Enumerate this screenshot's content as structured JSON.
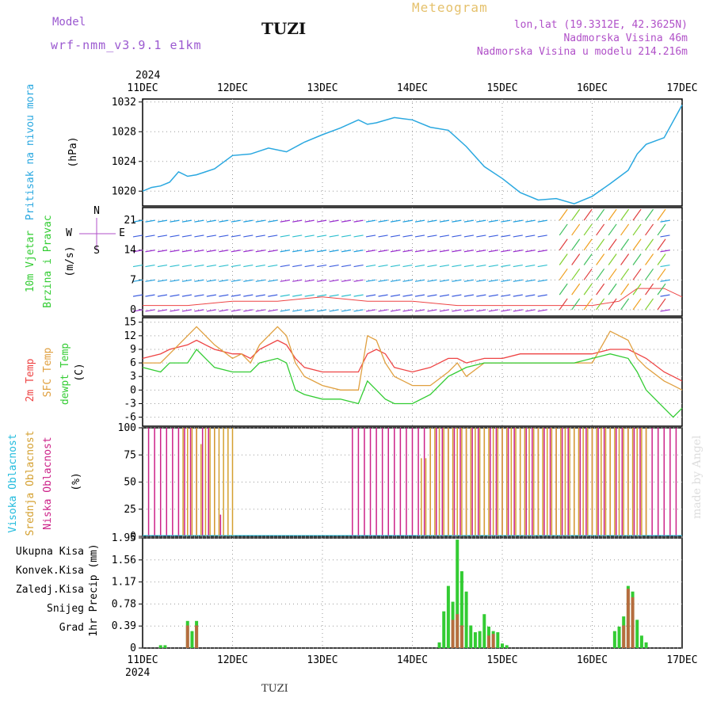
{
  "header": {
    "model_label": "Model",
    "model_name": "wrf-nmm_v3.9.1  e1km",
    "station": "TUZI",
    "title": "Meteogram",
    "lonlat": "lon,lat (19.3312E, 42.3625N)",
    "altitude": "Nadmorska Visina 46m",
    "model_altitude": "Nadmorska Visina u modelu 214.216m"
  },
  "footer": {
    "station": "TUZI",
    "credit": "made by Angel"
  },
  "time_axis": {
    "year": "2024",
    "ticks": [
      "11DEC",
      "12DEC",
      "13DEC",
      "14DEC",
      "15DEC",
      "16DEC",
      "17DEC"
    ]
  },
  "colors": {
    "pressure": "#2aa8e0",
    "temp": "#ee4444",
    "sfc": "#e0a040",
    "dew": "#33cc33",
    "cloud_high": "#22bbdd",
    "cloud_mid": "#d4a030",
    "cloud_low": "#cc2288",
    "precip_total": "#33cc33",
    "precip_conv": "#ee4444",
    "precip_frz": "#ee8833",
    "precip_snow": "#4444ee",
    "precip_hail": "#22cccc",
    "wind_label": "#33cc33",
    "wind_dir": "#b050c8"
  },
  "panels": {
    "pressure": {
      "label": "Pritisak na nivou mora",
      "unit": "(hPa)"
    },
    "wind": {
      "label1": "10m Vjetar",
      "label2": "Brzina i Pravac",
      "unit": "(m/s)",
      "compass_n": "N",
      "compass_s": "S",
      "compass_w": "W",
      "compass_e": "E"
    },
    "temp": {
      "label1": "2m Temp",
      "label2": "SFC Temp",
      "label3": "dewpt Temp",
      "unit": "(C)"
    },
    "cloud": {
      "label1": "Visoka Oblacnost",
      "label2": "Srednja Oblacnost",
      "label3": "Niska Oblacnost",
      "unit": "(%)"
    },
    "precip": {
      "unit": "1hr Precip (mm)",
      "legend": [
        "Ukupna Kisa",
        "Konvek.Kisa",
        "Zaledj.Kisa",
        "Snijeg",
        "Grad"
      ]
    }
  },
  "chart_data": [
    {
      "type": "line",
      "ylim": [
        1018,
        1032.4
      ],
      "yticks": [
        1020,
        1024,
        1028,
        1032
      ],
      "x": [
        0,
        0.1,
        0.2,
        0.3,
        0.4,
        0.5,
        0.6,
        0.7,
        0.8,
        1.0,
        1.2,
        1.4,
        1.6,
        1.8,
        2.0,
        2.2,
        2.4,
        2.5,
        2.6,
        2.8,
        3.0,
        3.2,
        3.4,
        3.6,
        3.8,
        4.0,
        4.2,
        4.4,
        4.6,
        4.8,
        5.0,
        5.2,
        5.4,
        5.5,
        5.6,
        5.8,
        6.0
      ],
      "series": [
        {
          "values": [
            1020.0,
            1020.5,
            1020.7,
            1021.2,
            1022.6,
            1022.0,
            1022.2,
            1022.6,
            1023.0,
            1024.8,
            1025.0,
            1025.8,
            1025.3,
            1026.6,
            1027.6,
            1028.5,
            1029.6,
            1029.0,
            1029.2,
            1029.9,
            1029.6,
            1028.6,
            1028.2,
            1026.0,
            1023.3,
            1021.7,
            1019.8,
            1018.8,
            1019.0,
            1018.3,
            1019.3,
            1021.0,
            1022.8,
            1025.0,
            1026.3,
            1027.2,
            1031.6
          ]
        }
      ]
    },
    {
      "type": "line",
      "ylim": [
        -1.5,
        24
      ],
      "yticks": [
        0,
        7,
        14,
        21
      ],
      "x": [
        0,
        0.5,
        1,
        1.5,
        2,
        2.5,
        3,
        3.5,
        4,
        4.5,
        5,
        5.3,
        5.5,
        5.8,
        6
      ],
      "series": [
        {
          "values": [
            1,
            1,
            2,
            2,
            3,
            2,
            2,
            1,
            1,
            1,
            1,
            2,
            5,
            5,
            3
          ]
        }
      ]
    },
    {
      "type": "line",
      "ylim": [
        -8,
        16
      ],
      "yticks": [
        -6,
        -3,
        0,
        3,
        6,
        9,
        12,
        15
      ],
      "x": [
        0,
        0.2,
        0.3,
        0.5,
        0.6,
        0.7,
        0.8,
        1.0,
        1.1,
        1.2,
        1.3,
        1.5,
        1.6,
        1.7,
        1.8,
        2.0,
        2.2,
        2.4,
        2.5,
        2.6,
        2.7,
        2.8,
        3.0,
        3.2,
        3.4,
        3.5,
        3.6,
        3.8,
        4.0,
        4.2,
        4.4,
        4.6,
        4.8,
        5.0,
        5.2,
        5.4,
        5.5,
        5.6,
        5.8,
        5.9,
        6.0
      ],
      "series": [
        {
          "name": "2m Temp",
          "values": [
            7,
            8,
            9,
            10,
            11,
            10,
            9,
            8,
            8,
            7,
            9,
            11,
            10,
            7,
            5,
            4,
            4,
            4,
            8,
            9,
            8,
            5,
            4,
            5,
            7,
            7,
            6,
            7,
            7,
            8,
            8,
            8,
            8,
            8,
            9,
            9,
            8,
            7,
            4,
            3,
            2
          ]
        },
        {
          "name": "SFC Temp",
          "values": [
            6,
            6,
            8,
            12,
            14,
            12,
            10,
            7,
            8,
            6,
            10,
            14,
            12,
            6,
            3,
            1,
            0,
            0,
            12,
            11,
            6,
            3,
            1,
            1,
            4,
            6,
            3,
            6,
            6,
            6,
            6,
            6,
            6,
            6,
            13,
            11,
            7,
            5,
            2,
            1,
            0
          ]
        },
        {
          "name": "dewpt Temp",
          "values": [
            5,
            4,
            6,
            6,
            9,
            7,
            5,
            4,
            4,
            4,
            6,
            7,
            6,
            0,
            -1,
            -2,
            -2,
            -3,
            2,
            0,
            -2,
            -3,
            -3,
            -1,
            3,
            4,
            5,
            6,
            6,
            6,
            6,
            6,
            6,
            7,
            8,
            7,
            4,
            0,
            -4,
            -6,
            -4
          ]
        }
      ]
    },
    {
      "type": "bar",
      "ylim": [
        0,
        100
      ],
      "yticks": [
        0,
        25,
        50,
        75,
        100
      ],
      "series": [
        {
          "name": "Niska Oblacnost",
          "x": [
            0.1,
            0.2,
            0.3,
            0.4,
            0.5,
            0.6,
            0.7,
            0.8,
            0.9,
            1.0,
            1.1,
            1.2,
            1.3,
            3.5,
            3.6,
            3.7,
            3.8,
            3.9,
            4.0,
            4.1,
            4.2,
            4.3,
            4.4,
            4.5,
            4.6,
            4.7,
            4.8,
            4.9,
            5.0,
            5.1,
            5.2,
            5.3,
            5.4,
            5.5,
            5.6,
            5.7,
            5.8,
            5.9,
            6.0,
            6.1,
            6.2,
            6.3,
            6.4,
            6.5,
            6.6,
            6.7,
            6.8,
            6.9,
            7.0,
            7.1,
            7.2,
            7.3,
            7.4,
            7.5,
            7.6,
            7.7,
            7.8,
            7.9,
            8.0,
            8.1,
            8.2,
            8.3,
            8.4,
            8.5,
            8.6,
            8.7,
            8.8,
            8.9
          ],
          "values": [
            100,
            100,
            100,
            100,
            100,
            100,
            100,
            100,
            100,
            100,
            100,
            100,
            20,
            100,
            100,
            100,
            100,
            100,
            100,
            100,
            100,
            100,
            100,
            100,
            100,
            100,
            100,
            100,
            100,
            100,
            100,
            100,
            100,
            100,
            100,
            100,
            100,
            100,
            100,
            100,
            100,
            100,
            100,
            100,
            100,
            100,
            100,
            100,
            100,
            100,
            100,
            100,
            100,
            100,
            100,
            100,
            100,
            100,
            100,
            100,
            100,
            100,
            100,
            100,
            100,
            100,
            100,
            100
          ]
        },
        {
          "name": "Srednja Oblacnost",
          "x": [
            0.45,
            0.5,
            0.55,
            0.6,
            0.65,
            0.7,
            0.75,
            0.8,
            0.85,
            0.9,
            0.95,
            1.0,
            3.1,
            3.15,
            3.2,
            3.25,
            3.3,
            3.35,
            3.4,
            3.45,
            3.5,
            3.55,
            3.6,
            3.65,
            3.7,
            3.75,
            3.8,
            3.85,
            3.9,
            3.95,
            4.0,
            4.05,
            4.1,
            4.15,
            4.2,
            4.25,
            4.3,
            4.35,
            4.4,
            4.45,
            4.5,
            4.55,
            4.6,
            4.65,
            4.7,
            4.75,
            4.8,
            4.85,
            4.9,
            4.95,
            5.0,
            5.05,
            5.1,
            5.15,
            5.2,
            5.25,
            5.3,
            5.35,
            5.4,
            5.45,
            5.5,
            5.55,
            5.6
          ],
          "values": [
            100,
            100,
            100,
            100,
            85,
            100,
            100,
            100,
            100,
            100,
            100,
            100,
            72,
            72,
            100,
            100,
            100,
            100,
            100,
            100,
            100,
            100,
            100,
            100,
            100,
            100,
            100,
            100,
            100,
            100,
            100,
            100,
            100,
            100,
            100,
            100,
            100,
            100,
            100,
            100,
            100,
            100,
            100,
            100,
            100,
            100,
            100,
            100,
            100,
            100,
            100,
            100,
            100,
            100,
            100,
            100,
            100,
            100,
            100,
            100,
            100,
            100,
            100
          ]
        }
      ]
    },
    {
      "type": "bar",
      "ylim": [
        0,
        1.95
      ],
      "yticks": [
        0,
        0.39,
        0.78,
        1.17,
        1.56,
        1.95
      ],
      "series": [
        {
          "name": "Ukupna Kisa",
          "x": [
            0.2,
            0.25,
            0.5,
            0.55,
            0.6,
            3.3,
            3.35,
            3.4,
            3.45,
            3.5,
            3.55,
            3.6,
            3.65,
            3.7,
            3.75,
            3.8,
            3.85,
            3.9,
            3.95,
            4.0,
            4.05,
            5.25,
            5.3,
            5.35,
            5.4,
            5.45,
            5.5,
            5.55,
            5.6
          ],
          "values": [
            0.05,
            0.05,
            0.48,
            0.3,
            0.48,
            0.1,
            0.65,
            1.1,
            0.82,
            1.92,
            1.36,
            1.0,
            0.4,
            0.28,
            0.3,
            0.6,
            0.38,
            0.3,
            0.28,
            0.08,
            0.05,
            0.3,
            0.38,
            0.56,
            1.1,
            1.0,
            0.5,
            0.22,
            0.1
          ]
        },
        {
          "name": "Konvek.Kisa",
          "x": [
            0.5,
            0.6,
            3.45,
            3.5,
            3.55,
            3.85,
            3.9,
            5.35,
            5.4,
            5.45
          ],
          "values": [
            0.4,
            0.4,
            0.5,
            0.6,
            0.4,
            0.22,
            0.25,
            0.4,
            1.05,
            0.9
          ]
        }
      ]
    }
  ]
}
